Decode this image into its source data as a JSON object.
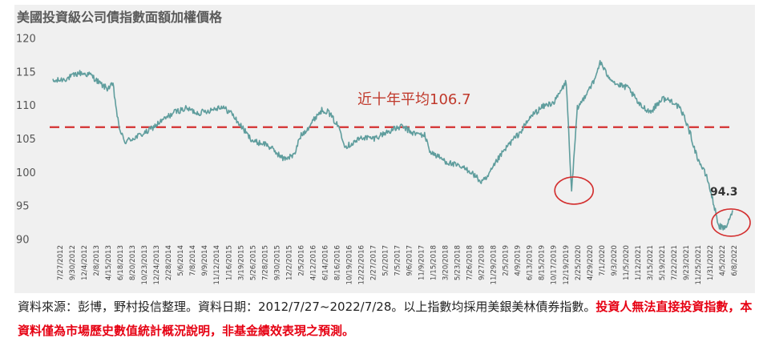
{
  "chart_data": {
    "type": "line",
    "title": "美國投資級公司債指數面額加權價格",
    "ylim": [
      90,
      120
    ],
    "yticks": [
      "120",
      "115",
      "110",
      "105",
      "100",
      "95",
      "90"
    ],
    "x_tick_labels": [
      "7/27/2012",
      "9/30/2012",
      "12/4/2012",
      "2/8/2013",
      "4/15/2013",
      "6/18/2013",
      "8/20/2013",
      "10/23/2013",
      "12/24/2013",
      "2/28/2014",
      "5/6/2014",
      "7/8/2014",
      "9/9/2014",
      "11/12/2014",
      "1/16/2015",
      "3/19/2015",
      "5/26/2015",
      "7/28/2015",
      "9/30/2015",
      "12/2/2015",
      "2/5/2016",
      "4/12/2016",
      "6/14/2016",
      "8/16/2016",
      "10/19/2016",
      "12/22/2016",
      "2/27/2017",
      "5/2/2017",
      "7/5/2017",
      "9/6/2017",
      "11/9/2017",
      "1/15/2018",
      "3/20/2018",
      "5/23/2018",
      "7/26/2018",
      "9/27/2018",
      "11/29/2018",
      "2/5/2019",
      "4/9/2019",
      "6/13/2019",
      "8/15/2019",
      "10/17/2019",
      "12/19/2019",
      "2/25/2020",
      "4/29/2020",
      "7/1/2020",
      "9/3/2020",
      "11/5/2020",
      "1/12/2021",
      "3/15/2021",
      "5/19/2021",
      "7/22/2021",
      "9/23/2021",
      "11/25/2021",
      "1/31/2022",
      "4/5/2022",
      "6/8/2022"
    ],
    "series": [
      {
        "x": [
          "7/27/2012",
          "10/2012",
          "12/2012",
          "2/2013",
          "4/2013",
          "5/2013",
          "6/2013",
          "7/2013",
          "8/2013",
          "10/2013",
          "12/2013",
          "2/2014",
          "5/2014",
          "7/2014",
          "9/2014",
          "11/2014",
          "1/2015",
          "3/2015",
          "4/2015",
          "5/2015",
          "6/2015",
          "7/2015",
          "9/2015",
          "11/2015",
          "12/2015",
          "2/2016",
          "3/2016",
          "5/2016",
          "6/2016",
          "7/2016",
          "8/2016",
          "10/2016",
          "11/2016",
          "12/2016",
          "2/2017",
          "4/2017",
          "7/2017",
          "9/2017",
          "11/2017",
          "1/2018",
          "2/2018",
          "5/2018",
          "9/2018",
          "11/2018",
          "12/2018",
          "2/2019",
          "4/2019",
          "6/2019",
          "8/2019",
          "10/2019",
          "12/2019",
          "2/2020",
          "3/2020",
          "4/2020",
          "5/2020",
          "6/2020",
          "7/2020",
          "8/2020",
          "9/2020",
          "11/2020",
          "12/2020",
          "1/2021",
          "3/2021",
          "5/2021",
          "7/2021",
          "9/2021",
          "10/2021",
          "11/2021",
          "12/2021",
          "1/2022",
          "3/2022",
          "4/2022",
          "5/2022",
          "6/2022",
          "7/2022",
          "7/28/2022"
        ],
        "y": [
          113.5,
          114.0,
          114.8,
          114.5,
          113.0,
          112.5,
          113.0,
          107.0,
          104.5,
          105.2,
          106.0,
          107.3,
          109.0,
          109.5,
          108.8,
          109.2,
          109.8,
          108.8,
          107.5,
          106.5,
          105.3,
          104.5,
          104.2,
          102.8,
          102.0,
          102.5,
          105.2,
          107.2,
          108.5,
          109.3,
          109.0,
          106.5,
          103.8,
          104.2,
          105.2,
          105.0,
          106.2,
          106.8,
          105.8,
          105.5,
          103.0,
          101.5,
          100.2,
          98.5,
          99.0,
          102.0,
          104.2,
          106.0,
          108.5,
          109.8,
          110.5,
          113.5,
          97.0,
          109.5,
          110.8,
          112.5,
          113.5,
          116.5,
          114.8,
          113.0,
          112.8,
          112.5,
          110.0,
          109.0,
          111.0,
          110.5,
          109.5,
          108.0,
          105.5,
          102.5,
          99.0,
          95.5,
          92.0,
          91.5,
          93.0,
          94.3
        ]
      }
    ],
    "reference_line": {
      "value": 106.7,
      "label": "近十年平均106.7"
    },
    "end_label": "94.3",
    "colors": {
      "line": "#5f9d9d",
      "reference": "#d32f2f",
      "circle": "#d32f2f"
    }
  },
  "footnote": {
    "source": "資料來源：彭博，野村投信整理。資料日期：2012/7/27~2022/7/28。以上指數均採用美銀美林債券指數。",
    "warning": "投資人無法直接投資指數，本資料僅為市場歷史數值統計概況說明，非基金績效表現之預測。"
  }
}
